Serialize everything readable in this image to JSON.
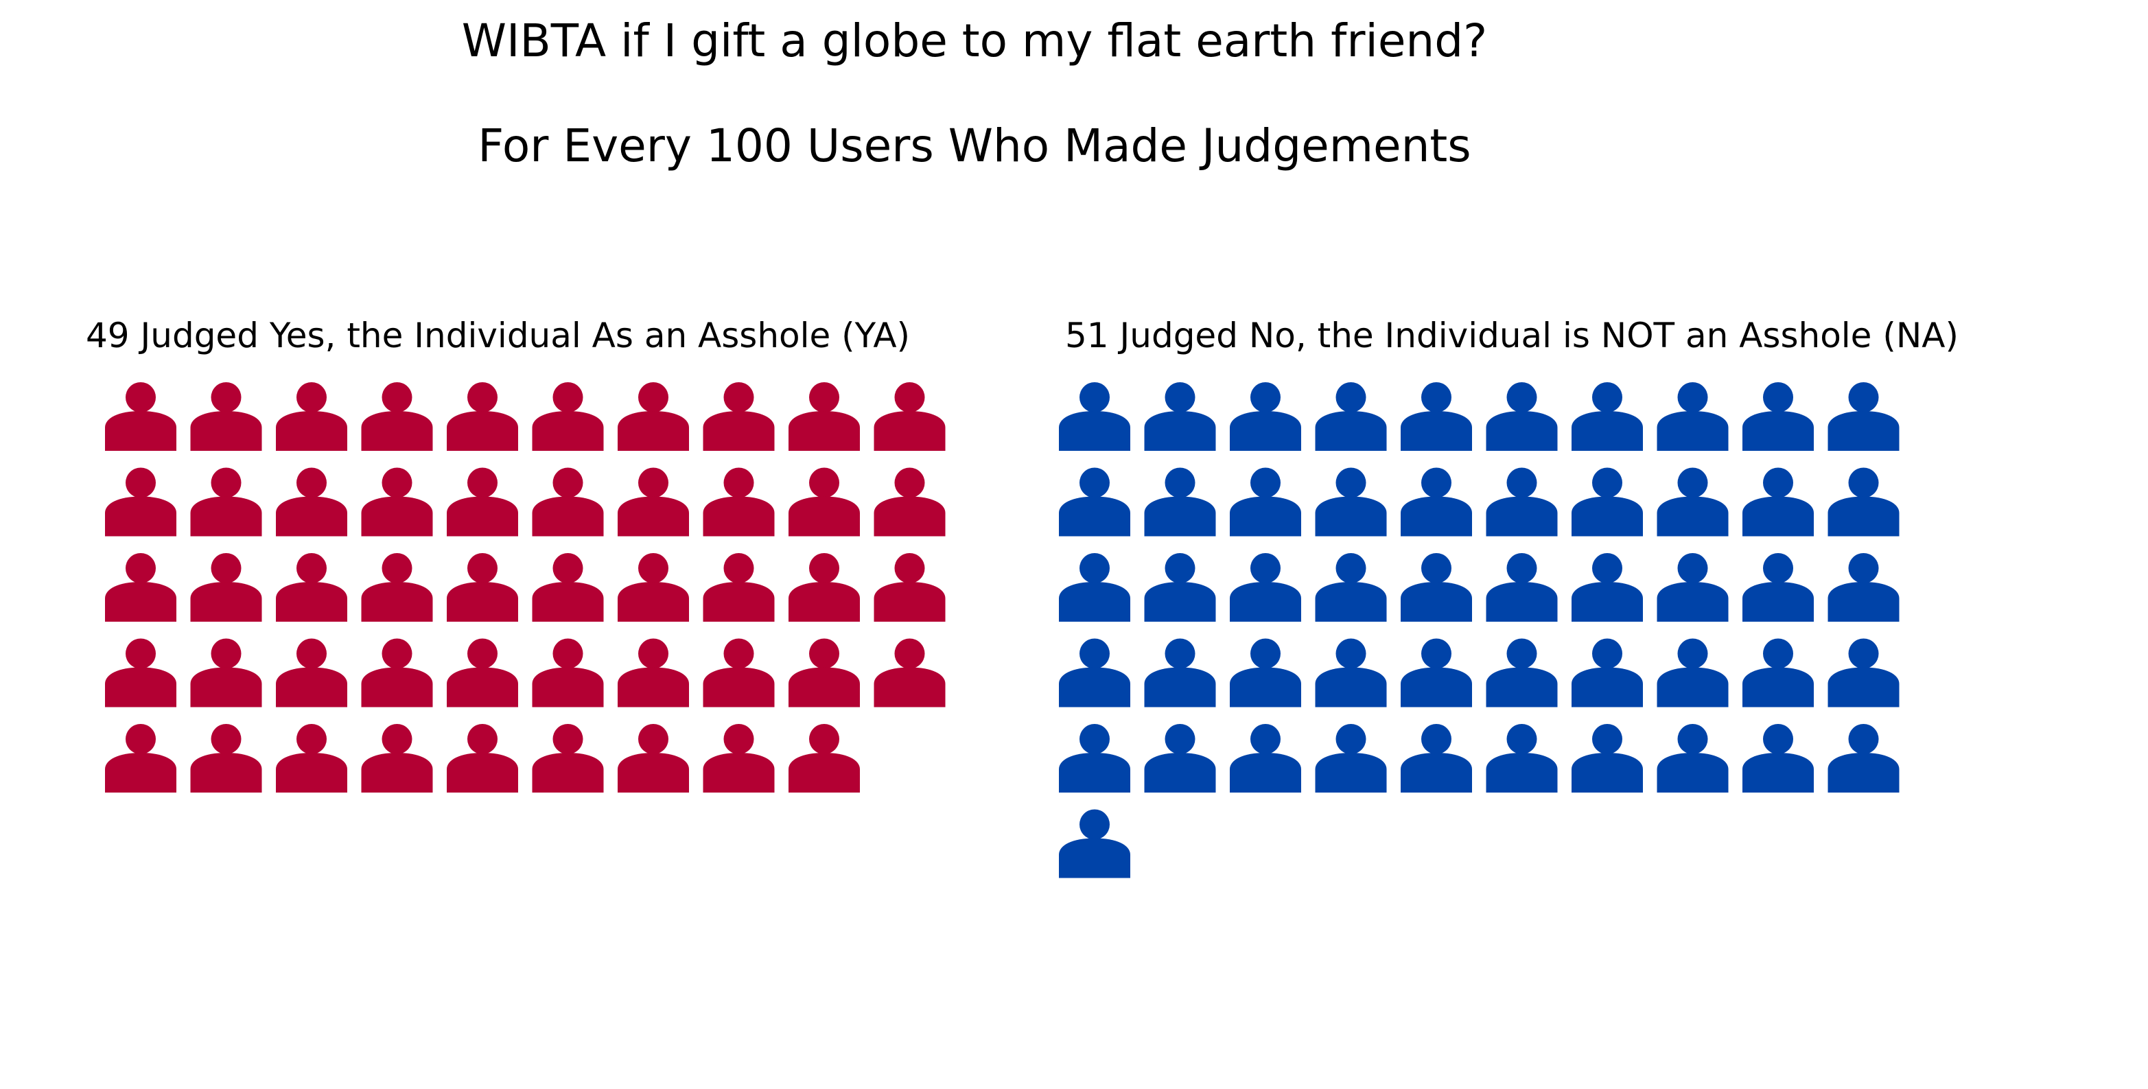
{
  "chart_data": {
    "type": "pictogram",
    "title": "WIBTA if I gift a globe to my flat earth friend?",
    "subtitle": "For Every 100 Users Who Made Judgements",
    "total": 100,
    "icon": "person-icon",
    "icons_per_row": 10,
    "series": [
      {
        "label": "49 Judged Yes, the Individual As an Asshole (YA)",
        "value": 49,
        "color": "#b30033"
      },
      {
        "label": "51 Judged No, the Individual is NOT an Asshole (NA)",
        "value": 51,
        "color": "#0043a8"
      }
    ]
  }
}
